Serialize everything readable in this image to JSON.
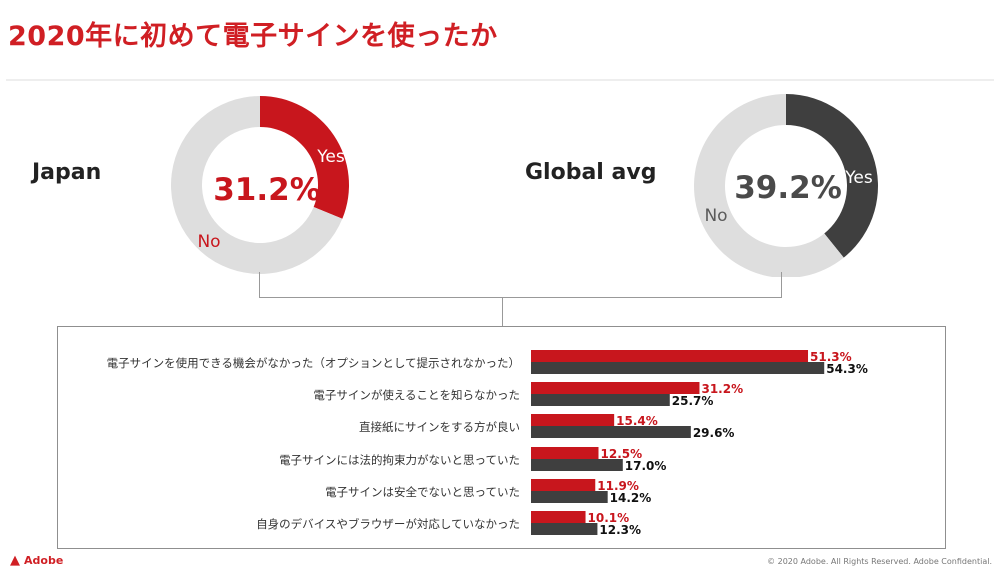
{
  "title": "2020年に初めて電子サインを使ったか",
  "colors": {
    "accent": "#c8161d",
    "dark": "#3f3f3f",
    "track": "#dedede",
    "title": "#d01f24"
  },
  "chart_data": [
    {
      "type": "pie",
      "title": "Japan",
      "center_label": "31.2%",
      "slices": [
        {
          "label": "Yes",
          "value": 31.2,
          "color": "#c8161d"
        },
        {
          "label": "No",
          "value": 68.8,
          "color": "#dedede"
        }
      ]
    },
    {
      "type": "pie",
      "title": "Global avg",
      "center_label": "39.2%",
      "slices": [
        {
          "label": "Yes",
          "value": 39.2,
          "color": "#3f3f3f"
        },
        {
          "label": "No",
          "value": 60.8,
          "color": "#dedede"
        }
      ]
    },
    {
      "type": "bar",
      "orientation": "horizontal",
      "categories": [
        "電子サインを使用できる機会がなかった（オプションとして提示されなかった）",
        "電子サインが使えることを知らなかった",
        "直接紙にサインをする方が良い",
        "電子サインには法的拘束力がないと思っていた",
        "電子サインは安全でないと思っていた",
        "自身のデバイスやブラウザーが対応していなかった"
      ],
      "series": [
        {
          "name": "Japan",
          "color": "#c8161d",
          "values": [
            51.3,
            31.2,
            15.4,
            12.5,
            11.9,
            10.1
          ],
          "labels": [
            "51.3%",
            "31.2%",
            "15.4%",
            "12.5%",
            "11.9%",
            "10.1%"
          ]
        },
        {
          "name": "Global avg",
          "color": "#3f3f3f",
          "values": [
            54.3,
            25.7,
            29.6,
            17.0,
            14.2,
            12.3
          ],
          "labels": [
            "54.3%",
            "25.7%",
            "29.6%",
            "17.0%",
            "14.2%",
            "12.3%"
          ]
        }
      ],
      "xlim": [
        0,
        60
      ]
    }
  ],
  "footer": {
    "brand": "Adobe",
    "copyright": "© 2020 Adobe. All Rights Reserved. Adobe Confidential."
  }
}
